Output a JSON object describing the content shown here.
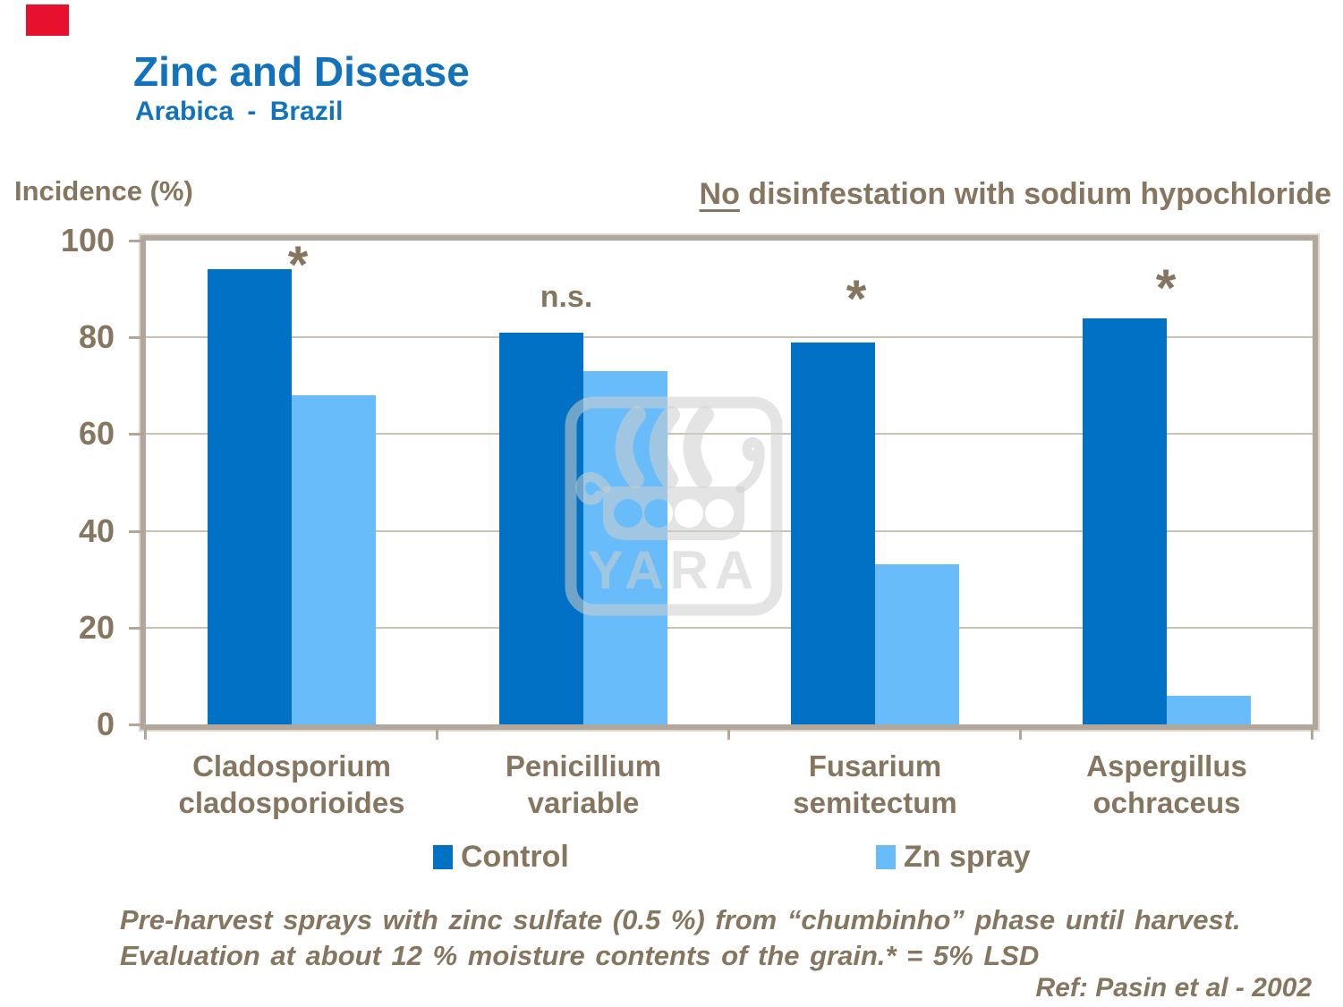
{
  "header": {
    "title": "Zinc and Disease",
    "subtitle": "Arabica - Brazil",
    "axis_title": "Incidence (%)",
    "note_no": "No",
    "note_rest": " disinfestation with sodium hypochloride"
  },
  "chart_data": {
    "type": "bar",
    "categories": [
      [
        "Cladosporium",
        "cladosporioides"
      ],
      [
        "Penicillium",
        "variable"
      ],
      [
        "Fusarium",
        "semitectum"
      ],
      [
        "Aspergillus",
        "ochraceus"
      ]
    ],
    "series": [
      {
        "name": "Control",
        "color": "#0071C4",
        "values": [
          94,
          81,
          79,
          84
        ]
      },
      {
        "name": "Zn spray",
        "color": "#68BCFA",
        "values": [
          68,
          73,
          33,
          6
        ]
      }
    ],
    "annotations": [
      "*",
      "n.s.",
      "*",
      "*"
    ],
    "ylabel": "Incidence (%)",
    "ylim": [
      0,
      100
    ],
    "yticks": [
      0,
      20,
      40,
      60,
      80,
      100
    ],
    "grid": true,
    "legend_position": "bottom"
  },
  "footnote": {
    "line1": "Pre-harvest sprays with zinc sulfate (0.5 %) from “chumbinho” phase until harvest.",
    "line2": "Evaluation at about 12 % moisture contents of the grain.* = 5% LSD",
    "ref": "Ref: Pasin et al - 2002"
  },
  "watermark": {
    "text": "YARA"
  },
  "colors": {
    "title_blue": "#1173BD",
    "text_brown": "#87765F",
    "control_blue": "#0071C4",
    "zn_spray_blue": "#68BCFA",
    "gridline": "#C9C1B4",
    "axis_frame": "#B1A79A",
    "accent_red": "#E8112D"
  }
}
